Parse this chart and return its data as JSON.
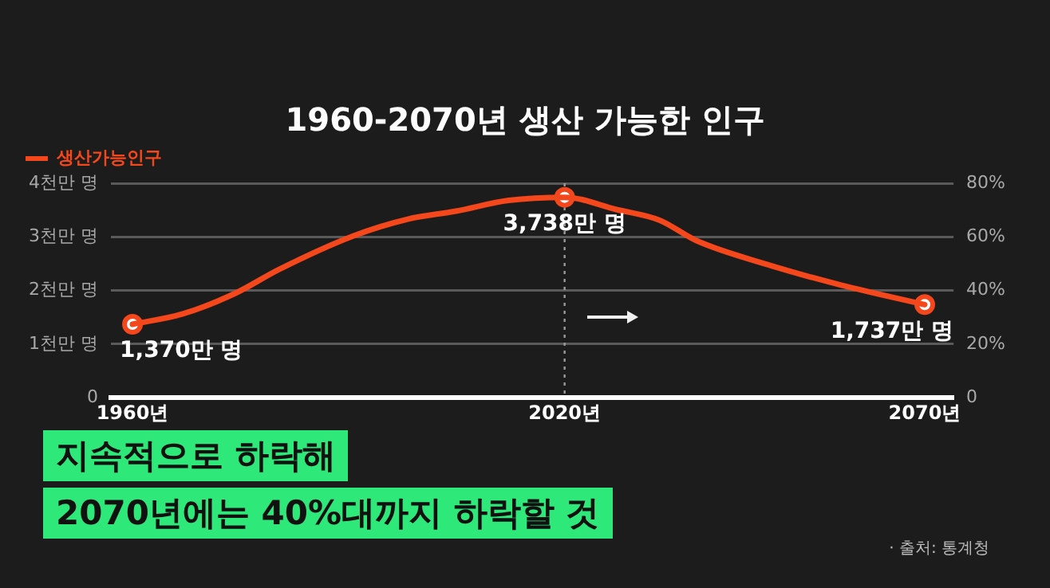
{
  "chart_data": {
    "type": "line",
    "title": "1960-2070년 생산 가능한 인구",
    "x": [
      1960,
      1966.9,
      1974.3,
      1980.3,
      1990.7,
      1998.2,
      2004.9,
      2012.2,
      2020,
      2027.2,
      2033.2,
      2038.3,
      2048,
      2058.4,
      2070
    ],
    "series": [
      {
        "name": "생산가능인구",
        "color": "#f4471c",
        "marker": "none",
        "values": [
          1.37,
          1.56,
          1.95,
          2.39,
          3.02,
          3.33,
          3.48,
          3.68,
          3.738,
          3.51,
          3.31,
          2.93,
          2.49,
          2.1,
          1.737
        ]
      },
      {
        "type": "scatter",
        "color": "#f4471c",
        "x": [
          1960,
          2020,
          2070
        ],
        "values": [
          1.37,
          3.738,
          1.737
        ]
      }
    ],
    "xlim": [
      1957,
      2074
    ],
    "xticks": [
      {
        "value": 1960,
        "label": "1960년"
      },
      {
        "value": 2020,
        "label": "2020년"
      },
      {
        "value": 2070,
        "label": "2070년"
      }
    ],
    "ylim": [
      0,
      4
    ],
    "yticks": [
      0,
      {
        "value": 1,
        "label": "1천만 명"
      },
      {
        "value": 2,
        "label": "2천만 명"
      },
      {
        "value": 3,
        "label": "3천만 명"
      },
      {
        "value": 4,
        "label": "4천만 명"
      }
    ],
    "y2lim": [
      0,
      80
    ],
    "y2ticks": [
      0,
      {
        "value": 20,
        "label": "20%"
      },
      {
        "value": 40,
        "label": "40%"
      },
      {
        "value": 60,
        "label": "60%"
      },
      {
        "value": 80,
        "label": "80%"
      }
    ],
    "ref_lines": [
      {
        "axis": "x",
        "value": 2020,
        "color": "#9a9a9a",
        "line_style": "dotted"
      }
    ],
    "grid": "y",
    "legend": "top left",
    "marker": "circle",
    "line_style": "solid",
    "annotations": [
      {
        "text": "1,370만 명",
        "x": 1960,
        "y": 1.37
      },
      {
        "text": "3,738만 명",
        "x": 2020,
        "y": 3.738
      },
      {
        "text": "1,737만 명",
        "x": 2070,
        "y": 1.737
      },
      "지속적으로 하락해",
      "2070년에는 40%대까지 하락할 것",
      "· 출처: 통계청"
    ]
  }
}
